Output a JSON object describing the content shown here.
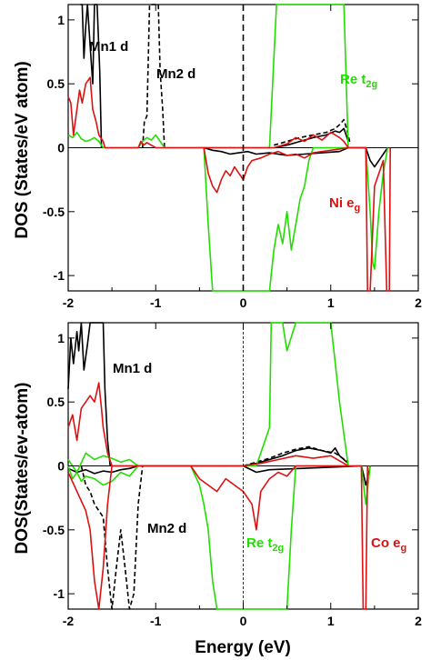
{
  "figure": {
    "ylabel_top": "DOS (States/eV atom)",
    "ylabel_bottom": "DOS(States/ev-atom)",
    "xlabel": "Energy (eV)"
  },
  "colors": {
    "mn1": "#000000",
    "mn2": "#000000",
    "re": "#22dd00",
    "b_site": "#dd1111",
    "fermi": "#000000"
  },
  "chart_data": [
    {
      "type": "line",
      "panel": "top",
      "xlim": [
        -2,
        2
      ],
      "ylim": [
        -1.12,
        1.12
      ],
      "xticks": [
        -2,
        -1,
        0,
        1,
        2
      ],
      "yticks": [
        -1,
        -0.5,
        0,
        0.5,
        1
      ],
      "xtick_labels": [
        "-2",
        "-1",
        "0",
        "1",
        "2"
      ],
      "ytick_labels": [
        "-1",
        "-0.5",
        "0",
        "0.5",
        "1"
      ],
      "fermi_level": 0,
      "annotations": [
        {
          "id": "mn1",
          "text": "Mn1 d",
          "sub": "",
          "color": "#000000"
        },
        {
          "id": "mn2",
          "text": "Mn2 d",
          "sub": "",
          "color": "#000000"
        },
        {
          "id": "re",
          "text": "Re t",
          "sub": "2g",
          "color": "#22dd00"
        },
        {
          "id": "b",
          "text": "Ni e",
          "sub": "g",
          "color": "#dd1111"
        }
      ],
      "series": [
        {
          "key": "mn1",
          "color": "#000000",
          "dash": "solid",
          "x": [
            -1.86,
            -1.84,
            -1.82,
            -1.8,
            -1.78,
            -1.75,
            -1.72,
            -1.7,
            -1.67,
            -1.64,
            -1.62
          ],
          "y": [
            1.12,
            1.12,
            0.7,
            0.95,
            1.12,
            0.8,
            0.5,
            1.12,
            1.12,
            0.6,
            0
          ]
        },
        {
          "key": "mn1_dn",
          "color": "#000000",
          "dash": "solid",
          "x": [
            -0.45,
            -0.35,
            -0.25,
            -0.15,
            -0.05,
            0.05,
            0.15,
            0.3,
            0.5,
            0.7,
            0.9,
            1.1,
            1.2,
            1.4,
            1.45,
            1.5,
            1.55,
            1.6,
            1.65
          ],
          "y": [
            0,
            -0.02,
            -0.03,
            -0.05,
            -0.04,
            -0.03,
            -0.05,
            -0.04,
            -0.06,
            -0.05,
            -0.04,
            -0.03,
            0,
            0,
            -0.1,
            -0.15,
            -0.1,
            -0.05,
            0
          ]
        },
        {
          "key": "mn1_up_cb",
          "color": "#000000",
          "dash": "solid",
          "x": [
            0.35,
            0.5,
            0.65,
            0.8,
            0.95,
            1.05,
            1.1,
            1.15,
            1.2
          ],
          "y": [
            0,
            0.02,
            0.05,
            0.08,
            0.1,
            0.13,
            0.12,
            0.15,
            0.05
          ]
        },
        {
          "key": "mn2",
          "color": "#000000",
          "dash": "dashed",
          "x": [
            -1.15,
            -1.13,
            -1.1,
            -1.07,
            -1.05,
            -1.02,
            -1.0,
            -0.97,
            -0.95,
            -0.92,
            -0.9
          ],
          "y": [
            0,
            0.2,
            0.25,
            1.12,
            1.12,
            1.12,
            1.12,
            1.12,
            0.6,
            0.3,
            0
          ]
        },
        {
          "key": "mn2_cb",
          "color": "#000000",
          "dash": "dashed",
          "x": [
            0.35,
            0.5,
            0.65,
            0.8,
            0.95,
            1.05,
            1.1,
            1.15,
            1.18,
            1.22
          ],
          "y": [
            0.02,
            0.05,
            0.08,
            0.1,
            0.12,
            0.15,
            0.18,
            0.22,
            0.15,
            0.04
          ]
        },
        {
          "key": "re_up",
          "color": "#22dd00",
          "dash": "solid",
          "x": [
            -2.0,
            -1.95,
            -1.9,
            -1.85,
            -1.8,
            -1.75,
            -1.7,
            -1.65,
            -1.6,
            -1.2,
            -1.15,
            -1.1,
            -1.05,
            -1.0,
            -0.95,
            -0.9,
            0.3,
            0.38,
            0.4,
            0.45,
            0.5,
            0.7,
            0.8,
            0.9,
            1.0,
            1.1,
            1.15,
            1.2
          ],
          "y": [
            0.1,
            0.08,
            0.12,
            0.07,
            0.05,
            0.06,
            0.08,
            0.05,
            0,
            0,
            0.05,
            0.08,
            0.06,
            0.1,
            0.05,
            0,
            0,
            1.12,
            1.12,
            1.12,
            1.12,
            1.12,
            1.12,
            1.12,
            1.12,
            1.12,
            1.12,
            0
          ]
        },
        {
          "key": "re_dn",
          "color": "#22dd00",
          "dash": "solid",
          "x": [
            -0.45,
            -0.4,
            -0.35,
            -0.3,
            -0.2,
            -0.1,
            0.0,
            0.1,
            0.2,
            0.3,
            0.35,
            0.4,
            0.45,
            0.5,
            0.55,
            0.6,
            0.65,
            0.7,
            0.75,
            0.8,
            1.2,
            1.4,
            1.45,
            1.48,
            1.5,
            1.55,
            1.6,
            1.65
          ],
          "y": [
            0,
            -0.6,
            -1.12,
            -1.12,
            -1.12,
            -1.12,
            -1.12,
            -1.12,
            -1.12,
            -1.12,
            -0.8,
            -0.6,
            -0.75,
            -0.5,
            -0.8,
            -0.6,
            -0.4,
            -0.3,
            -0.1,
            0,
            0,
            0,
            -0.5,
            -0.9,
            -0.95,
            -0.5,
            -0.2,
            0
          ]
        },
        {
          "key": "b_up",
          "color": "#dd1111",
          "dash": "solid",
          "x": [
            -2.0,
            -1.97,
            -1.94,
            -1.9,
            -1.87,
            -1.84,
            -1.8,
            -1.75,
            -1.72,
            -1.68,
            -1.65,
            -1.6,
            -1.58,
            -1.2,
            -1.17,
            -1.14,
            -1.1,
            -1.05,
            -1.0,
            0.35,
            0.5,
            0.6,
            0.7,
            0.8,
            0.9,
            1.0,
            1.1,
            1.15,
            1.2
          ],
          "y": [
            0.4,
            0.35,
            0.1,
            0.3,
            0.45,
            0.35,
            0.5,
            0.55,
            0.3,
            0.2,
            0.1,
            0.05,
            0,
            0,
            0.05,
            0.02,
            0.04,
            0.02,
            0,
            0,
            0.03,
            0.08,
            0.05,
            0.1,
            0.06,
            0.12,
            0.08,
            0.05,
            0
          ]
        },
        {
          "key": "b_dn",
          "color": "#dd1111",
          "dash": "solid",
          "x": [
            -0.45,
            -0.4,
            -0.35,
            -0.3,
            -0.25,
            -0.2,
            -0.15,
            -0.1,
            -0.05,
            0.0,
            0.05,
            0.1,
            0.2,
            0.3,
            0.4,
            0.5,
            0.6,
            0.7,
            0.8,
            1.2,
            1.4,
            1.42,
            1.45,
            1.5,
            1.6,
            1.64,
            1.67,
            1.68
          ],
          "y": [
            0,
            -0.2,
            -0.3,
            -0.35,
            -0.25,
            -0.18,
            -0.22,
            -0.15,
            -0.2,
            -0.25,
            -0.15,
            -0.1,
            -0.08,
            -0.05,
            -0.03,
            -0.06,
            -0.05,
            -0.08,
            -0.04,
            0,
            0,
            -1.12,
            -1.12,
            -0.3,
            -0.1,
            -1.12,
            -1.12,
            0
          ]
        }
      ]
    },
    {
      "type": "line",
      "panel": "bottom",
      "xlim": [
        -2,
        2
      ],
      "ylim": [
        -1.12,
        1.12
      ],
      "xticks": [
        -2,
        -1,
        0,
        1,
        2
      ],
      "yticks": [
        -1,
        -0.5,
        0,
        0.5,
        1
      ],
      "xtick_labels": [
        "-2",
        "-1",
        "0",
        "1",
        "2"
      ],
      "ytick_labels": [
        "-1",
        "-0.5",
        "0",
        "0.5",
        "1"
      ],
      "fermi_level": 0,
      "annotations": [
        {
          "id": "mn1",
          "text": "Mn1 d",
          "sub": "",
          "color": "#000000"
        },
        {
          "id": "mn2",
          "text": "Mn2 d",
          "sub": "",
          "color": "#000000"
        },
        {
          "id": "re",
          "text": "Re t",
          "sub": "2g",
          "color": "#22dd00"
        },
        {
          "id": "b",
          "text": "Co e",
          "sub": "g",
          "color": "#dd1111"
        }
      ],
      "series": [
        {
          "key": "mn1",
          "color": "#000000",
          "dash": "solid",
          "x": [
            -2.0,
            -1.97,
            -1.94,
            -1.9,
            -1.88,
            -1.85,
            -1.82,
            -1.78,
            -1.75,
            -1.7,
            -1.65,
            -1.6,
            -1.58,
            -1.55,
            -1.52
          ],
          "y": [
            0.6,
            1.0,
            0.8,
            1.05,
            0.9,
            1.12,
            0.75,
            0.95,
            1.12,
            1.12,
            1.12,
            1.12,
            0.6,
            0.2,
            0
          ]
        },
        {
          "key": "mn1_cb",
          "color": "#000000",
          "dash": "solid",
          "x": [
            0.0,
            0.15,
            0.3,
            0.45,
            0.6,
            0.75,
            0.9,
            1.0,
            1.05,
            1.1,
            1.15,
            1.2
          ],
          "y": [
            0,
            0.02,
            0.05,
            0.08,
            0.12,
            0.14,
            0.12,
            0.1,
            0.14,
            0.08,
            0.05,
            0.02
          ]
        },
        {
          "key": "mn1_dn",
          "color": "#000000",
          "dash": "solid",
          "x": [
            -2.0,
            -1.9,
            -1.8,
            -1.7,
            -1.6,
            -1.5,
            -1.4,
            -1.3,
            -1.2,
            0.0,
            0.15,
            0.3,
            1.35,
            1.38,
            1.4,
            1.42,
            1.45
          ],
          "y": [
            -0.02,
            -0.05,
            -0.03,
            -0.06,
            -0.04,
            -0.05,
            -0.03,
            -0.02,
            0,
            0,
            -0.05,
            -0.03,
            0,
            -0.08,
            -0.15,
            -0.1,
            0
          ]
        },
        {
          "key": "mn2",
          "color": "#000000",
          "dash": "dashed",
          "x": [
            -1.85,
            -1.8,
            -1.75,
            -1.7,
            -1.65,
            -1.6,
            -1.55,
            -1.5,
            -1.45,
            -1.4,
            -1.35,
            -1.3,
            -1.25,
            -1.2,
            -1.15
          ],
          "y": [
            0,
            -0.15,
            -0.2,
            -0.3,
            -0.35,
            -0.4,
            -0.8,
            -1.12,
            -0.8,
            -0.5,
            -0.8,
            -1.12,
            -1.0,
            -0.3,
            0
          ]
        },
        {
          "key": "mn2_cb",
          "color": "#000000",
          "dash": "dashed",
          "x": [
            0.0,
            0.15,
            0.3,
            0.45,
            0.6,
            0.75,
            0.9,
            1.05,
            1.2
          ],
          "y": [
            0,
            0.03,
            0.06,
            0.1,
            0.13,
            0.15,
            0.12,
            0.1,
            0.03
          ]
        },
        {
          "key": "re_up",
          "color": "#22dd00",
          "dash": "solid",
          "x": [
            -2.0,
            -1.9,
            -1.8,
            -1.7,
            -1.6,
            -1.5,
            -1.4,
            -1.3,
            -1.2,
            0.0,
            0.15,
            0.3,
            0.32,
            0.35,
            0.4,
            0.45,
            0.5,
            0.6,
            0.7,
            0.8,
            0.9,
            1.0,
            1.1,
            1.2
          ],
          "y": [
            0.05,
            -0.05,
            0.1,
            0.05,
            0.08,
            0.06,
            0.03,
            0.05,
            0,
            0,
            0,
            0.3,
            1.12,
            1.12,
            1.12,
            1.12,
            0.9,
            1.12,
            1.12,
            1.12,
            1.12,
            1.12,
            0.5,
            0
          ]
        },
        {
          "key": "re_dn",
          "color": "#22dd00",
          "dash": "solid",
          "x": [
            -2.0,
            -1.95,
            -1.9,
            -1.85,
            -1.8,
            -1.7,
            -1.6,
            -1.5,
            -1.4,
            -1.3,
            -1.2,
            -0.6,
            -0.5,
            -0.45,
            -0.4,
            -0.35,
            -0.3,
            -0.2,
            -0.1,
            0.0,
            0.1,
            0.2,
            0.3,
            0.4,
            0.5,
            0.55,
            0.6,
            1.35,
            1.4,
            1.45
          ],
          "y": [
            0,
            -0.1,
            -0.05,
            -0.12,
            -0.08,
            -0.1,
            -0.15,
            -0.12,
            -0.05,
            -0.08,
            0,
            0,
            -0.15,
            -0.3,
            -0.5,
            -0.9,
            -1.12,
            -1.12,
            -1.12,
            -1.12,
            -1.12,
            -1.12,
            -1.12,
            -1.12,
            -1.12,
            -0.5,
            0,
            0,
            -0.3,
            0
          ]
        },
        {
          "key": "b_up",
          "color": "#dd1111",
          "dash": "solid",
          "x": [
            -2.0,
            -1.95,
            -1.9,
            -1.85,
            -1.8,
            -1.75,
            -1.7,
            -1.65,
            -1.62,
            -1.6,
            -1.55,
            -1.5,
            0.0,
            0.2,
            0.4,
            0.6,
            0.8,
            1.0,
            1.1,
            1.2
          ],
          "y": [
            0.3,
            0.4,
            0.2,
            0.45,
            0.5,
            0.55,
            0.5,
            0.65,
            0.45,
            0.3,
            0.1,
            0,
            0,
            0.02,
            0.05,
            0.08,
            0.06,
            0.08,
            0.04,
            0
          ]
        },
        {
          "key": "b_dn",
          "color": "#dd1111",
          "dash": "solid",
          "x": [
            -2.0,
            -1.9,
            -1.8,
            -1.75,
            -1.7,
            -1.65,
            -1.6,
            -1.55,
            -1.5,
            -0.6,
            -0.5,
            -0.4,
            -0.3,
            -0.2,
            -0.1,
            0.0,
            0.1,
            0.15,
            0.2,
            0.3,
            0.4,
            0.5,
            0.6,
            1.35,
            1.37,
            1.4,
            1.42
          ],
          "y": [
            -0.05,
            -0.2,
            -0.35,
            -0.5,
            -0.9,
            -1.12,
            -0.8,
            -0.3,
            0,
            0,
            -0.1,
            -0.15,
            -0.2,
            -0.1,
            -0.15,
            -0.2,
            -0.3,
            -0.5,
            -0.2,
            -0.1,
            -0.05,
            -0.08,
            0,
            0,
            -1.12,
            -1.12,
            0
          ]
        }
      ]
    }
  ]
}
